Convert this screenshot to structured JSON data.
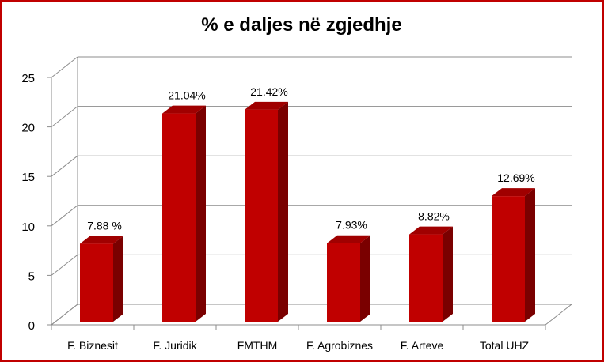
{
  "chart_data": {
    "type": "bar",
    "title": "% e daljes në zgjedhje",
    "categories": [
      "F. Biznesit",
      "F. Juridik",
      "FMTHM",
      "F. Agrobiznes",
      "F. Arteve",
      "Total UHZ"
    ],
    "values": [
      7.88,
      21.04,
      21.42,
      7.93,
      8.82,
      12.69
    ],
    "data_labels": [
      "7.88 %",
      "21.04%",
      "21.42%",
      "7.93%",
      "8.82%",
      "12.69%"
    ],
    "ylim": [
      0,
      25
    ],
    "yticks": [
      "0",
      "5",
      "10",
      "15",
      "20",
      "25"
    ],
    "xlabel": "",
    "ylabel": "",
    "grid": true,
    "legend": "none",
    "style": "3d-column"
  },
  "colors": {
    "bar_front": "#c00000",
    "bar_side": "#7a0000",
    "bar_top": "#a00000",
    "border": "#c00000",
    "gridline": "#8c8c8c"
  }
}
